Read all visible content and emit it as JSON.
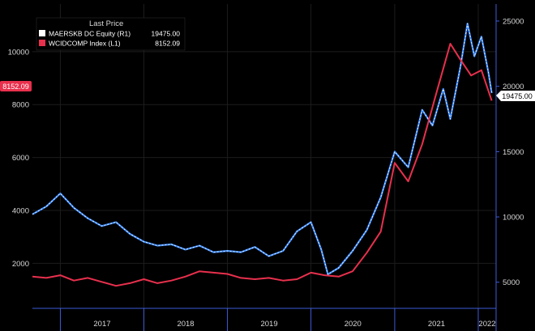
{
  "chart_data": {
    "type": "line",
    "legend": {
      "header": "Last Price",
      "entries": [
        {
          "name": "MAERSKB DC Equity  (R1)",
          "value": "19475.00",
          "color": "#ffffff"
        },
        {
          "name": "WCIDCOMP Index  (L1)",
          "value": "8152.09",
          "color": "#e8304d"
        }
      ]
    },
    "x_ticks": [
      "2017",
      "2018",
      "2019",
      "2020",
      "2021",
      "2022"
    ],
    "left_axis": {
      "ticks": [
        "2000",
        "4000",
        "6000",
        "8000",
        "10000"
      ],
      "ylim": [
        300,
        11800
      ]
    },
    "right_axis": {
      "ticks": [
        "5000",
        "10000",
        "15000",
        "20000",
        "25000"
      ],
      "ylim": [
        3000,
        26300
      ]
    },
    "last_price_tags": {
      "left": "8152.09",
      "right": "19475.00"
    },
    "colors": {
      "maersk_line": "#3d8cff",
      "maersk_highlight": "#ffffff",
      "wcid_line": "#e8304d",
      "axis": "#3d5bd6",
      "tag": "#e8304d"
    },
    "series": [
      {
        "name": "WCIDCOMP Index  (L1)",
        "axis": "left",
        "color": "#e8304d",
        "points": [
          [
            "2016-09-01",
            1500
          ],
          [
            "2016-11-01",
            1450
          ],
          [
            "2017-01-01",
            1550
          ],
          [
            "2017-03-01",
            1350
          ],
          [
            "2017-05-01",
            1450
          ],
          [
            "2017-07-01",
            1300
          ],
          [
            "2017-09-01",
            1150
          ],
          [
            "2017-11-01",
            1250
          ],
          [
            "2018-01-01",
            1400
          ],
          [
            "2018-03-01",
            1250
          ],
          [
            "2018-05-01",
            1350
          ],
          [
            "2018-07-01",
            1500
          ],
          [
            "2018-09-01",
            1700
          ],
          [
            "2018-11-01",
            1650
          ],
          [
            "2019-01-01",
            1600
          ],
          [
            "2019-03-01",
            1450
          ],
          [
            "2019-05-01",
            1400
          ],
          [
            "2019-07-01",
            1450
          ],
          [
            "2019-09-01",
            1350
          ],
          [
            "2019-11-01",
            1400
          ],
          [
            "2020-01-01",
            1650
          ],
          [
            "2020-03-01",
            1550
          ],
          [
            "2020-05-01",
            1500
          ],
          [
            "2020-07-01",
            1700
          ],
          [
            "2020-09-01",
            2400
          ],
          [
            "2020-11-01",
            3200
          ],
          [
            "2021-01-01",
            5800
          ],
          [
            "2021-03-01",
            5100
          ],
          [
            "2021-05-01",
            6500
          ],
          [
            "2021-07-01",
            8400
          ],
          [
            "2021-09-01",
            10300
          ],
          [
            "2021-10-15",
            9700
          ],
          [
            "2021-12-01",
            9100
          ],
          [
            "2022-01-15",
            9300
          ],
          [
            "2022-03-01",
            8152
          ]
        ]
      },
      {
        "name": "MAERSKB DC Equity  (R1)",
        "axis": "right",
        "color": "#3d8cff",
        "points": [
          [
            "2016-09-01",
            10200
          ],
          [
            "2016-11-01",
            10800
          ],
          [
            "2017-01-01",
            11800
          ],
          [
            "2017-03-01",
            10700
          ],
          [
            "2017-05-01",
            9900
          ],
          [
            "2017-07-01",
            9300
          ],
          [
            "2017-09-01",
            9600
          ],
          [
            "2017-11-01",
            8700
          ],
          [
            "2018-01-01",
            8100
          ],
          [
            "2018-03-01",
            7800
          ],
          [
            "2018-05-01",
            7900
          ],
          [
            "2018-07-01",
            7500
          ],
          [
            "2018-09-01",
            7800
          ],
          [
            "2018-11-01",
            7300
          ],
          [
            "2019-01-01",
            7400
          ],
          [
            "2019-03-01",
            7300
          ],
          [
            "2019-05-01",
            7700
          ],
          [
            "2019-07-01",
            7000
          ],
          [
            "2019-09-01",
            7400
          ],
          [
            "2019-11-01",
            8900
          ],
          [
            "2020-01-01",
            9600
          ],
          [
            "2020-02-15",
            7500
          ],
          [
            "2020-03-15",
            5600
          ],
          [
            "2020-05-01",
            6100
          ],
          [
            "2020-07-01",
            7400
          ],
          [
            "2020-09-01",
            9000
          ],
          [
            "2020-11-01",
            11500
          ],
          [
            "2021-01-01",
            15000
          ],
          [
            "2021-03-01",
            13800
          ],
          [
            "2021-05-01",
            18200
          ],
          [
            "2021-06-15",
            17000
          ],
          [
            "2021-08-01",
            19800
          ],
          [
            "2021-09-01",
            17500
          ],
          [
            "2021-10-15",
            21500
          ],
          [
            "2021-11-15",
            24800
          ],
          [
            "2021-12-15",
            22300
          ],
          [
            "2022-01-15",
            23800
          ],
          [
            "2022-02-15",
            21000
          ],
          [
            "2022-03-01",
            19475
          ]
        ]
      }
    ]
  }
}
